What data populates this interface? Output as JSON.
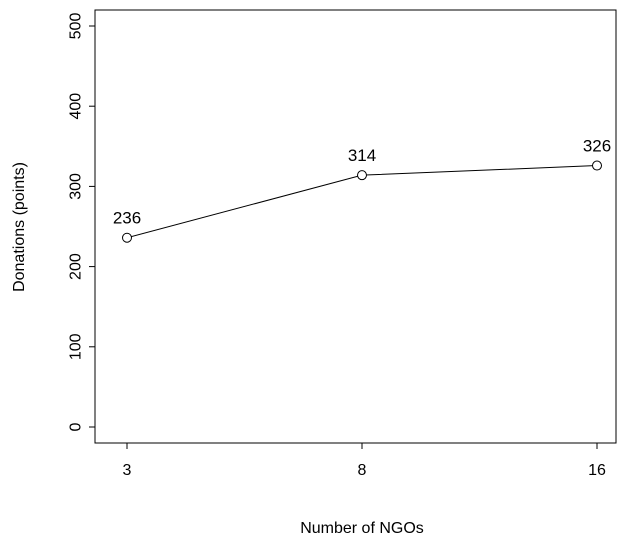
{
  "chart_data": {
    "type": "line",
    "title": "",
    "xlabel": "Number of NGOs",
    "ylabel": "Donations (points)",
    "categories": [
      "3",
      "8",
      "16"
    ],
    "values": [
      236,
      314,
      326
    ],
    "data_labels": [
      "236",
      "314",
      "326"
    ],
    "ylim": [
      0,
      500
    ],
    "y_ticks": [
      0,
      100,
      200,
      300,
      400,
      500
    ],
    "marker": "open-circle",
    "grid": false,
    "legend": "none"
  }
}
